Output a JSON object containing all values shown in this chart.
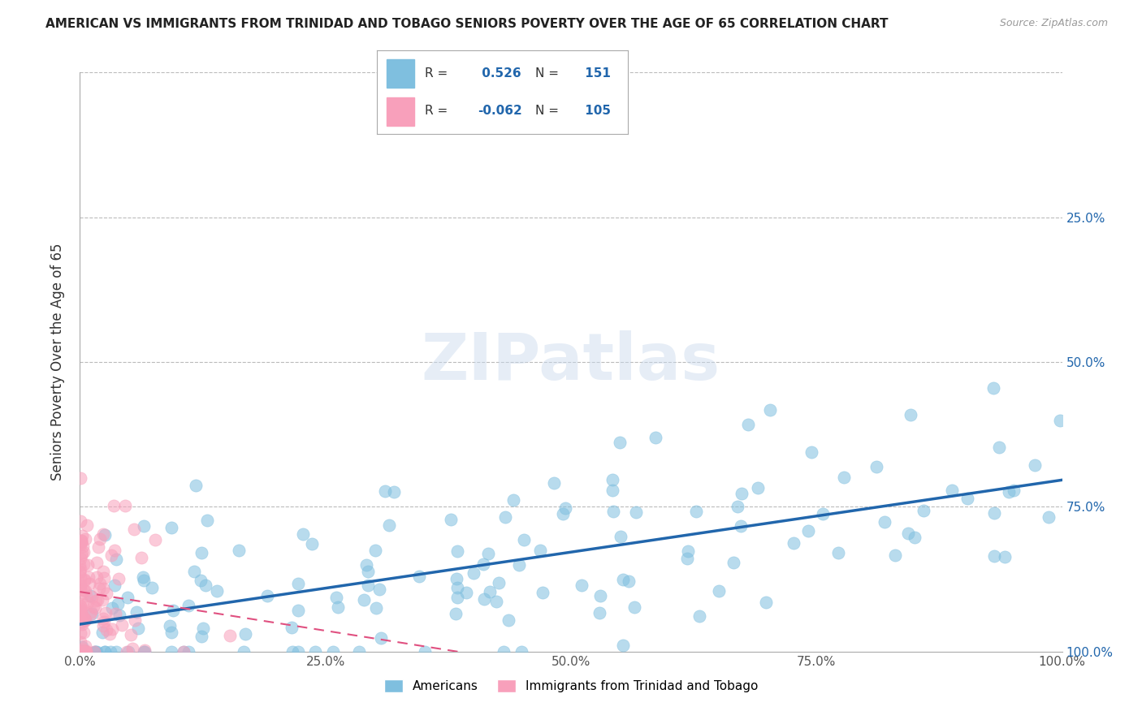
{
  "title": "AMERICAN VS IMMIGRANTS FROM TRINIDAD AND TOBAGO SENIORS POVERTY OVER THE AGE OF 65 CORRELATION CHART",
  "source": "Source: ZipAtlas.com",
  "ylabel": "Seniors Poverty Over the Age of 65",
  "xlim": [
    0,
    1.0
  ],
  "ylim": [
    0,
    1.0
  ],
  "xtick_labels": [
    "0.0%",
    "25.0%",
    "50.0%",
    "75.0%",
    "100.0%"
  ],
  "xtick_vals": [
    0.0,
    0.25,
    0.5,
    0.75,
    1.0
  ],
  "ytick_vals": [
    0.0,
    0.25,
    0.5,
    0.75,
    1.0
  ],
  "right_ytick_labels": [
    "100.0%",
    "75.0%",
    "50.0%",
    "25.0%",
    ""
  ],
  "americans_color": "#7fbfdf",
  "immigrants_color": "#f8a0bb",
  "americans_R": 0.526,
  "americans_N": 151,
  "immigrants_R": -0.062,
  "immigrants_N": 105,
  "legend_label1": "Americans",
  "legend_label2": "Immigrants from Trinidad and Tobago",
  "watermark": "ZIPatlas",
  "grid_color": "#bbbbbb",
  "background_color": "#ffffff",
  "title_fontsize": 11,
  "axis_label_fontsize": 12,
  "tick_fontsize": 11,
  "americans_line_color": "#2166ac",
  "immigrants_line_color": "#e05080",
  "legend_text_color": "#2166ac",
  "legend_r_color": "#2166ac"
}
